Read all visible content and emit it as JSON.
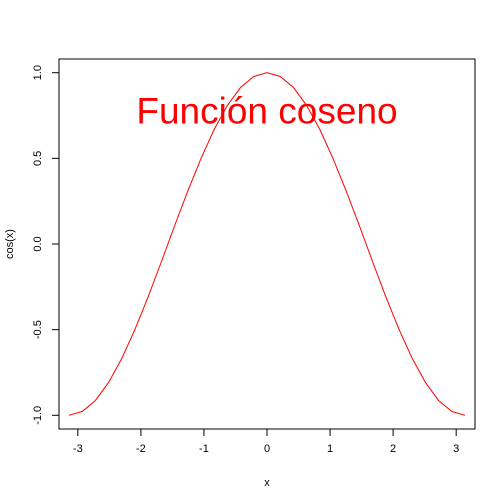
{
  "chart_data": {
    "type": "line",
    "title": "",
    "xlabel": "x",
    "ylabel": "cos(x)",
    "xlim": [
      -3.2985,
      3.2985
    ],
    "ylim": [
      -1.08,
      1.08
    ],
    "x_ticks": [
      -3,
      -2,
      -1,
      0,
      1,
      2,
      3
    ],
    "x_tick_labels": [
      "-3",
      "-2",
      "-1",
      "0",
      "1",
      "2",
      "3"
    ],
    "y_ticks": [
      -1.0,
      -0.5,
      0.0,
      0.5,
      1.0
    ],
    "y_tick_labels": [
      "-1.0",
      "-0.5",
      "0.0",
      "0.5",
      "1.0"
    ],
    "grid": false,
    "annotation": {
      "text": "Función coseno",
      "x": 0,
      "y": 0.78,
      "color": "#ff0000"
    },
    "series": [
      {
        "color": "#ff0000",
        "x": [
          -3.1416,
          -2.9322,
          -2.7227,
          -2.5133,
          -2.3038,
          -2.0944,
          -1.885,
          -1.6755,
          -1.4661,
          -1.2566,
          -1.0472,
          -0.8378,
          -0.6283,
          -0.4189,
          -0.2094,
          0.0,
          0.2094,
          0.4189,
          0.6283,
          0.8378,
          1.0472,
          1.2566,
          1.4661,
          1.6755,
          1.885,
          2.0944,
          2.3038,
          2.5133,
          2.7227,
          2.9322,
          3.1416
        ],
        "y": [
          -1.0,
          -0.978,
          -0.914,
          -0.809,
          -0.669,
          -0.5,
          -0.309,
          -0.105,
          0.105,
          0.309,
          0.5,
          0.669,
          0.809,
          0.914,
          0.978,
          1.0,
          0.978,
          0.914,
          0.809,
          0.669,
          0.5,
          0.309,
          0.105,
          -0.105,
          -0.309,
          -0.5,
          -0.669,
          -0.809,
          -0.914,
          -0.978,
          -1.0
        ]
      }
    ]
  }
}
